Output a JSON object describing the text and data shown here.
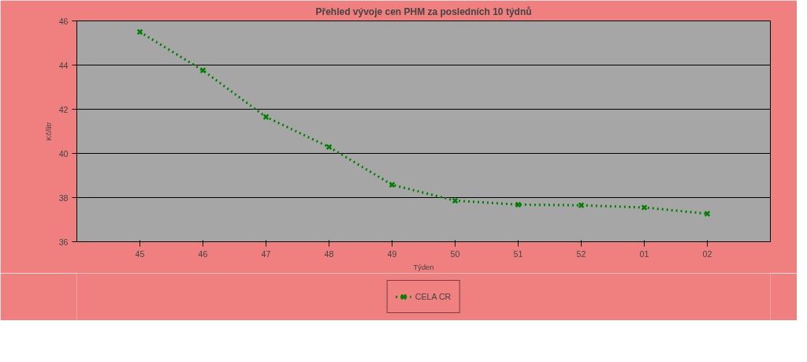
{
  "chart_data": {
    "type": "line",
    "title": "Přehled vývoje cen PHM za posledních 10 týdnů",
    "xlabel": "Týden",
    "ylabel": "Kč/litr",
    "categories": [
      "45",
      "46",
      "47",
      "48",
      "49",
      "50",
      "51",
      "52",
      "01",
      "02"
    ],
    "series": [
      {
        "name": "CELA CR",
        "color": "#008000",
        "values": [
          45.5,
          43.76,
          41.65,
          40.29,
          38.58,
          37.86,
          37.68,
          37.65,
          37.55,
          37.27
        ]
      }
    ],
    "ylim": [
      36,
      46
    ],
    "yticks": [
      36,
      38,
      40,
      42,
      44,
      46
    ],
    "grid": "y",
    "legend": "bottom",
    "marker": "cross",
    "line_style": "dotted"
  }
}
